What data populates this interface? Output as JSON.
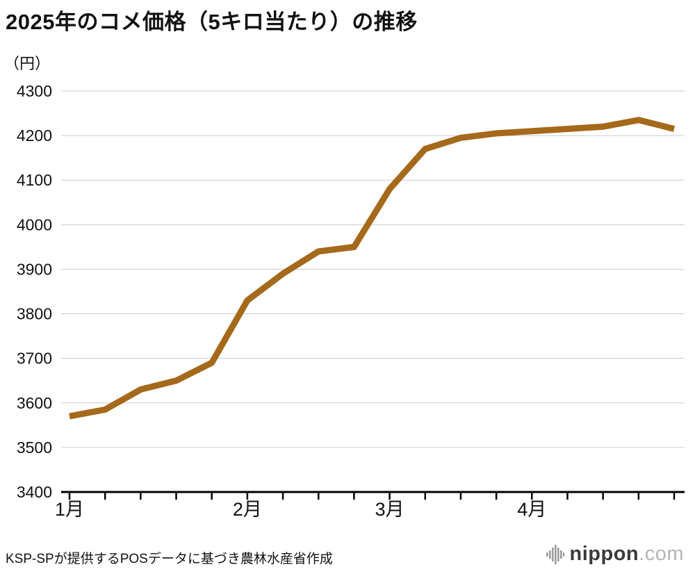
{
  "title": "2025年のコメ価格（5キロ当たり）の推移",
  "unit_label": "（円）",
  "source": "KSP-SPが提供するPOSデータに基づき農林水産省作成",
  "logo": {
    "name": "nippon",
    "domain": ".com"
  },
  "chart_data": {
    "type": "line",
    "title": "2025年のコメ価格（5キロ当たり）の推移",
    "ylabel": "（円）",
    "xlabel": "",
    "ylim": [
      3400,
      4300
    ],
    "ytick_step": 100,
    "grid": "horizontal",
    "legend": "none",
    "line_color": "#A5691B",
    "x_unit": "week",
    "x_month_labels": [
      {
        "index": 0,
        "label": "1月"
      },
      {
        "index": 5,
        "label": "2月"
      },
      {
        "index": 9,
        "label": "3月"
      },
      {
        "index": 13,
        "label": "4月"
      }
    ],
    "values": [
      3570,
      3585,
      3630,
      3650,
      3690,
      3830,
      3890,
      3940,
      3950,
      4080,
      4170,
      4195,
      4205,
      4210,
      4215,
      4220,
      4235,
      4215
    ]
  }
}
